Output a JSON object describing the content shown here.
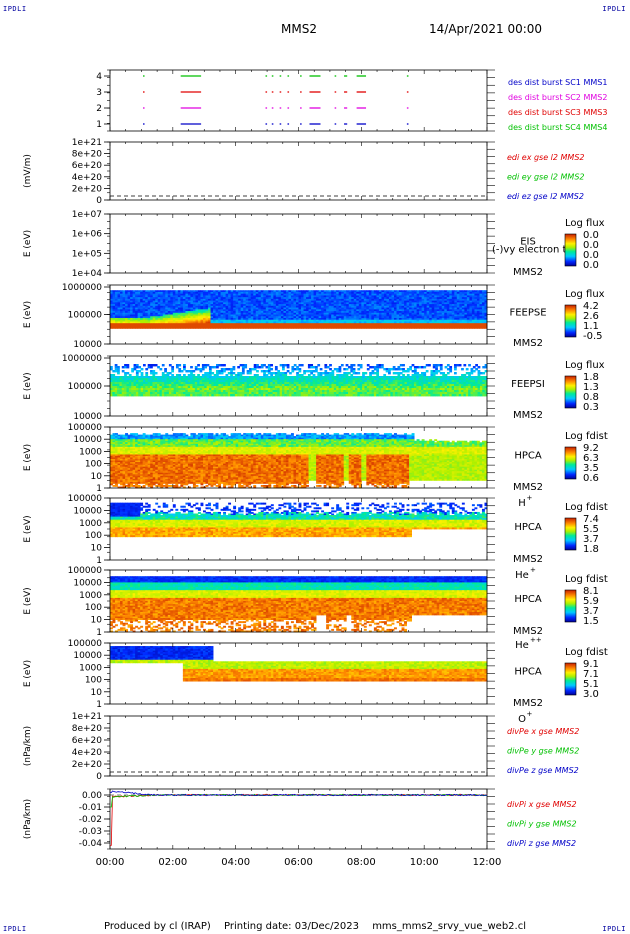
{
  "page": {
    "corner_tl": "IPDLI",
    "corner_tr": "IPDLI",
    "corner_bl": "IPDLI",
    "corner_br": "IPDLI",
    "title": "MMS2",
    "date": "14/Apr/2021 00:00",
    "footer_produced": "Produced by cl (IRAP)",
    "footer_printed": "Printing date: 03/Dec/2023",
    "footer_file": "mms_mms2_srvy_vue_web2.cl"
  },
  "colors": {
    "mms1": "#0000c8",
    "mms2": "#e000e0",
    "mms3": "#e00000",
    "mms4": "#00c000",
    "x": "#e00000",
    "y": "#00c000",
    "z": "#0000c8"
  },
  "chart_data": {
    "type": "multi-panel time series",
    "x_range": [
      "00:00",
      "12:00"
    ],
    "x_ticks": [
      "00:00",
      "02:00",
      "04:00",
      "06:00",
      "08:00",
      "10:00",
      "12:00"
    ],
    "panels": [
      {
        "type": "scatter",
        "yticks": [
          "4",
          "3",
          "2",
          "1"
        ],
        "series": [
          {
            "name": "des dist burst SC1 MMS1",
            "level": 1,
            "color": "#0000c8",
            "segments": [
              [
                1.05,
                1.1
              ],
              [
                2.25,
                2.9
              ],
              [
                4.95,
                5.0
              ],
              [
                5.15,
                5.2
              ],
              [
                5.4,
                5.45
              ],
              [
                5.65,
                5.7
              ],
              [
                6.05,
                6.1
              ],
              [
                6.35,
                6.7
              ],
              [
                7.15,
                7.2
              ],
              [
                7.45,
                7.55
              ],
              [
                7.85,
                8.15
              ],
              [
                9.45,
                9.5
              ]
            ]
          },
          {
            "name": "des dist burst SC2 MMS2",
            "level": 2,
            "color": "#e000e0",
            "segments": [
              [
                1.05,
                1.1
              ],
              [
                2.25,
                2.9
              ],
              [
                4.95,
                5.0
              ],
              [
                5.15,
                5.2
              ],
              [
                5.4,
                5.45
              ],
              [
                5.65,
                5.7
              ],
              [
                6.05,
                6.1
              ],
              [
                6.35,
                6.7
              ],
              [
                7.15,
                7.2
              ],
              [
                7.45,
                7.55
              ],
              [
                7.85,
                8.15
              ],
              [
                9.45,
                9.5
              ]
            ]
          },
          {
            "name": "des dist burst SC3 MMS3",
            "level": 3,
            "color": "#e00000",
            "segments": [
              [
                1.05,
                1.1
              ],
              [
                2.25,
                2.9
              ],
              [
                4.95,
                5.0
              ],
              [
                5.15,
                5.2
              ],
              [
                5.4,
                5.45
              ],
              [
                5.65,
                5.7
              ],
              [
                6.05,
                6.1
              ],
              [
                6.35,
                6.7
              ],
              [
                7.15,
                7.2
              ],
              [
                7.45,
                7.55
              ],
              [
                7.85,
                8.15
              ],
              [
                9.45,
                9.5
              ]
            ]
          },
          {
            "name": "des dist burst SC4 MMS4",
            "level": 4,
            "color": "#00c000",
            "segments": [
              [
                1.05,
                1.1
              ],
              [
                2.25,
                2.9
              ],
              [
                4.95,
                5.0
              ],
              [
                5.15,
                5.2
              ],
              [
                5.4,
                5.45
              ],
              [
                5.65,
                5.7
              ],
              [
                6.05,
                6.1
              ],
              [
                6.35,
                6.7
              ],
              [
                7.15,
                7.2
              ],
              [
                7.45,
                7.55
              ],
              [
                7.85,
                8.15
              ],
              [
                9.45,
                9.5
              ]
            ]
          }
        ]
      },
      {
        "type": "line",
        "ylabel": "(mV/m)",
        "yticks": [
          "1e+21",
          "8e+20",
          "6e+20",
          "4e+20",
          "2e+20",
          "0"
        ],
        "series": [
          {
            "name": "edi ex gse l2 MMS2",
            "color": "#e00000"
          },
          {
            "name": "edi ey gse l2 MMS2",
            "color": "#00c000"
          },
          {
            "name": "edi ez gse l2 MMS2",
            "color": "#0000c8"
          }
        ]
      },
      {
        "type": "heatmap",
        "ylabel": "E (eV)",
        "yticks": [
          "1e+07",
          "1e+06",
          "1e+05",
          "1e+04"
        ],
        "instrument": "EIS",
        "instrument_sub": "MMS2",
        "overlay_text": "(-)vy electron to",
        "cbar_title": "Log flux",
        "cbar_ticks": [
          "0.0",
          "0.0",
          "0.0",
          "0.0"
        ]
      },
      {
        "type": "heatmap",
        "ylabel": "E (eV)",
        "yticks": [
          "1000000",
          "100000",
          "10000"
        ],
        "instrument": "FEEPSE",
        "instrument_sub": "MMS2",
        "cbar_title": "Log flux",
        "cbar_ticks": [
          "4.2",
          "2.6",
          "1.1",
          "-0.5"
        ]
      },
      {
        "type": "heatmap",
        "ylabel": "E (eV)",
        "yticks": [
          "1000000",
          "100000",
          "10000"
        ],
        "instrument": "FEEPSI",
        "instrument_sub": "MMS2",
        "cbar_title": "Log flux",
        "cbar_ticks": [
          "1.8",
          "1.3",
          "0.8",
          "0.3"
        ]
      },
      {
        "type": "heatmap",
        "ylabel": "E (eV)",
        "yticks": [
          "100000",
          "10000",
          "1000",
          "100",
          "10",
          "1"
        ],
        "instrument": "HPCA",
        "instrument_sub": "MMS2",
        "species": "H",
        "species_sup": "+",
        "cbar_title": "Log fdist",
        "cbar_ticks": [
          "9.2",
          "6.3",
          "3.5",
          "0.6"
        ]
      },
      {
        "type": "heatmap",
        "ylabel": "E (eV)",
        "yticks": [
          "100000",
          "10000",
          "1000",
          "100",
          "10",
          "1"
        ],
        "instrument": "HPCA",
        "instrument_sub": "MMS2",
        "species": "He",
        "species_sup": "+",
        "cbar_title": "Log fdist",
        "cbar_ticks": [
          "7.4",
          "5.5",
          "3.7",
          "1.8"
        ]
      },
      {
        "type": "heatmap",
        "ylabel": "E (eV)",
        "yticks": [
          "100000",
          "10000",
          "1000",
          "100",
          "10",
          "1"
        ],
        "instrument": "HPCA",
        "instrument_sub": "MMS2",
        "species": "He",
        "species_sup": "++",
        "cbar_title": "Log fdist",
        "cbar_ticks": [
          "8.1",
          "5.9",
          "3.7",
          "1.5"
        ]
      },
      {
        "type": "heatmap",
        "ylabel": "E (eV)",
        "yticks": [
          "100000",
          "10000",
          "1000",
          "100",
          "10",
          "1"
        ],
        "instrument": "HPCA",
        "instrument_sub": "MMS2",
        "species": "O",
        "species_sup": "+",
        "cbar_title": "Log fdist",
        "cbar_ticks": [
          "9.1",
          "7.1",
          "5.1",
          "3.0"
        ]
      },
      {
        "type": "line",
        "ylabel": "(nPa/km)",
        "yticks": [
          "1e+21",
          "8e+20",
          "6e+20",
          "4e+20",
          "2e+20",
          "0"
        ],
        "series": [
          {
            "name": "divPe x gse MMS2",
            "color": "#e00000"
          },
          {
            "name": "divPe y gse MMS2",
            "color": "#00c000"
          },
          {
            "name": "divPe z gse MMS2",
            "color": "#0000c8"
          }
        ]
      },
      {
        "type": "line",
        "ylabel": "(nPa/km)",
        "yticks": [
          "0.00",
          "-0.01",
          "-0.02",
          "-0.03",
          "-0.04"
        ],
        "ylim": [
          -0.045,
          0.005
        ],
        "series": [
          {
            "name": "divPi x gse MMS2",
            "color": "#e00000"
          },
          {
            "name": "divPi y gse MMS2",
            "color": "#00c000"
          },
          {
            "name": "divPi z gse MMS2",
            "color": "#0000c8"
          }
        ]
      }
    ]
  }
}
